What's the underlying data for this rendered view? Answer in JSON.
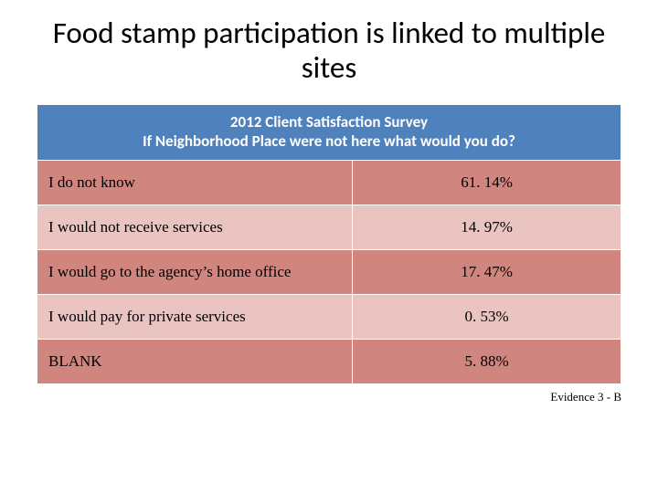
{
  "slide_title": "Food stamp participation is linked to multiple sites",
  "table": {
    "header": {
      "line1": "2012 Client Satisfaction Survey",
      "line2": "If Neighborhood Place were not here what would you do?",
      "bg_color": "#4f81bd",
      "text_color": "#ffffff"
    },
    "row_colors": {
      "dark": "#d0857f",
      "light": "#e9c4c1"
    },
    "rows": [
      {
        "label": "I do not know",
        "value": "61. 14%",
        "shade": "dark"
      },
      {
        "label": "I would not receive services",
        "value": "14. 97%",
        "shade": "light"
      },
      {
        "label": "I would go to the agency’s home office",
        "value": "17. 47%",
        "shade": "dark"
      },
      {
        "label": "I would pay for private services",
        "value": "0. 53%",
        "shade": "light"
      },
      {
        "label": "BLANK",
        "value": "5. 88%",
        "shade": "dark"
      }
    ]
  },
  "footer": "Evidence 3 - B"
}
